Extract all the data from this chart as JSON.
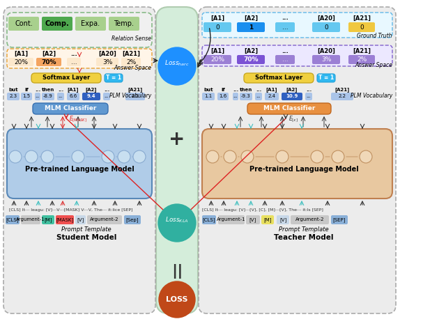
{
  "bg_color": "#ffffff",
  "center_bg_color": "#d8ecd8",
  "relation_labels": [
    "Cont.",
    "Comp.",
    "Expa.",
    "Temp."
  ],
  "relation_colors": [
    "#a8d08d",
    "#4ea84e",
    "#a8d08d",
    "#a8d08d"
  ],
  "relation_bold": [
    false,
    true,
    false,
    false
  ],
  "answer_labels": [
    "[A1]",
    "[A2]",
    "...",
    "[A20]",
    "[A21]"
  ],
  "answer_values_student": [
    "20%",
    "70%",
    "...",
    "3%",
    "2%"
  ],
  "answer_colors_student": [
    "#fce8cc",
    "#f4a460",
    "#fce8cc",
    "#fce8cc",
    "#fce8cc"
  ],
  "answer_values_teacher": [
    "20%",
    "70%",
    "...",
    "3%",
    "2%"
  ],
  "answer_colors_teacher": [
    "#9b7fd4",
    "#7b52d4",
    "#9b7fd4",
    "#9b7fd4",
    "#9b7fd4"
  ],
  "ground_truth_labels": [
    "[A1]",
    "[A2]",
    "...",
    "[A20]",
    "[A21]"
  ],
  "ground_truth_values": [
    "0",
    "1",
    "...",
    "0",
    "0"
  ],
  "ground_truth_colors_cell": [
    "#64c8f0",
    "#1a8fef",
    "#64c8f0",
    "#64c8f0",
    "#f0c840"
  ],
  "vocab_labels_student": [
    "but",
    "if",
    "...",
    "then",
    "...",
    "[A1]",
    "[A2]",
    "...",
    "[A21]"
  ],
  "vocab_values_student": [
    "2.3",
    "1.5",
    "...",
    "-8.9",
    "...",
    "6.6",
    "9.4",
    "...",
    "2.1"
  ],
  "vocab_colors_student": [
    "#aac4e8",
    "#aac4e8",
    "#aac4e8",
    "#aac4e8",
    "#aac4e8",
    "#aac4e8",
    "#3060c0",
    "#aac4e8",
    "#aac4e8"
  ],
  "vocab_labels_teacher": [
    "but",
    "if",
    "...",
    "then",
    "...",
    "[A1]",
    "[A2]",
    "...",
    "[A21]"
  ],
  "vocab_values_teacher": [
    "1.1",
    "1.6",
    "...",
    "-9.3",
    "...",
    "2.4",
    "10.9",
    "...",
    "2.2"
  ],
  "vocab_colors_teacher": [
    "#aac4e8",
    "#aac4e8",
    "#aac4e8",
    "#aac4e8",
    "#aac4e8",
    "#aac4e8",
    "#3060c0",
    "#aac4e8",
    "#aac4e8"
  ],
  "prompt_student": [
    "[CLS]",
    "Argument-1",
    "[M]",
    "[MASK]",
    "[V]",
    "Argument-2",
    "[Sep]"
  ],
  "prompt_colors_student": [
    "#8ab0d8",
    "#c8c8c8",
    "#40c0a0",
    "#f05050",
    "#c8d8e8",
    "#c8c8c8",
    "#8ab0d8"
  ],
  "prompt_teacher": [
    "[CLS]",
    "Argument-1",
    "[V]",
    "[M]",
    "[V]",
    "Argument-2",
    "[SEP]"
  ],
  "prompt_colors_teacher": [
    "#8ab0d8",
    "#c8c8c8",
    "#c8c8c8",
    "#e8e060",
    "#c8d8e8",
    "#c8c8c8",
    "#8ab0d8"
  ],
  "loss_harc_color": "#1e90ff",
  "loss_kla_color": "#30b0a0",
  "loss_final_color": "#c04818"
}
